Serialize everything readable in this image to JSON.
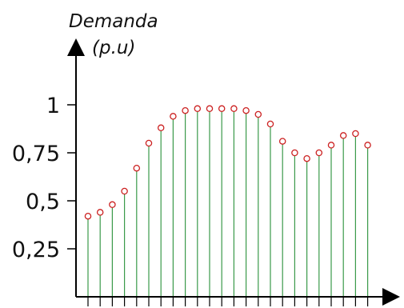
{
  "chart_data": {
    "type": "stem",
    "title": "",
    "xlabel": "",
    "ylabel_line1": "Demanda",
    "ylabel_line2": "(p.u)",
    "y_tick_labels": [
      "1",
      "0,75",
      "0,5",
      "0,25"
    ],
    "y_tick_values": [
      1,
      0.75,
      0.5,
      0.25
    ],
    "ylim": [
      0,
      1.25
    ],
    "x": [
      1,
      2,
      3,
      4,
      5,
      6,
      7,
      8,
      9,
      10,
      11,
      12,
      13,
      14,
      15,
      16,
      17,
      18,
      19,
      20,
      21,
      22,
      23,
      24
    ],
    "values": [
      0.42,
      0.44,
      0.48,
      0.55,
      0.67,
      0.8,
      0.88,
      0.94,
      0.97,
      0.98,
      0.98,
      0.98,
      0.98,
      0.97,
      0.95,
      0.9,
      0.81,
      0.75,
      0.72,
      0.75,
      0.79,
      0.84,
      0.85,
      0.79
    ],
    "stem_color": "#3a9a4a",
    "marker_color": "#cc2222",
    "axis_color": "#000000",
    "grid": false,
    "legend": "none"
  }
}
